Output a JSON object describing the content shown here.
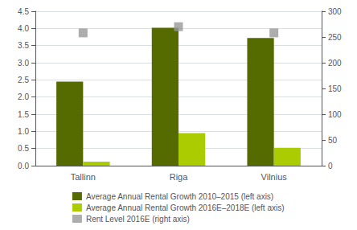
{
  "chart_data": {
    "type": "bar",
    "categories": [
      "Tallinn",
      "Riga",
      "Vilnius"
    ],
    "series": [
      {
        "name": "Average Annual Rental Growth 2010–2015 (left axis)",
        "type": "bar",
        "color": "#556B00",
        "values": [
          2.45,
          4.02,
          3.72
        ]
      },
      {
        "name": "Average Annual Rental Growth 2016E–2018E (left axis)",
        "type": "bar",
        "color": "#AACC00",
        "values": [
          0.12,
          0.95,
          0.52
        ]
      },
      {
        "name": "Rent Level 2016E (right axis)",
        "type": "scatter",
        "marker": "square",
        "axis": "y2",
        "color": "#999999",
        "values": [
          258,
          270,
          258
        ]
      }
    ],
    "ylim": [
      0,
      4.5
    ],
    "yticks": [
      {
        "value": 0,
        "label": "0.0"
      },
      0.5,
      {
        "value": 1,
        "label": "1.0"
      },
      1.5,
      {
        "value": 2,
        "label": "2.0"
      },
      2.5,
      {
        "value": 3,
        "label": "3.0"
      },
      3.5,
      {
        "value": 4,
        "label": "4.0"
      },
      4.5
    ],
    "y2lim": [
      0,
      300
    ],
    "y2ticks": [
      0,
      50,
      100,
      150,
      200,
      250,
      300
    ],
    "grid": true,
    "legend": "bottom"
  }
}
